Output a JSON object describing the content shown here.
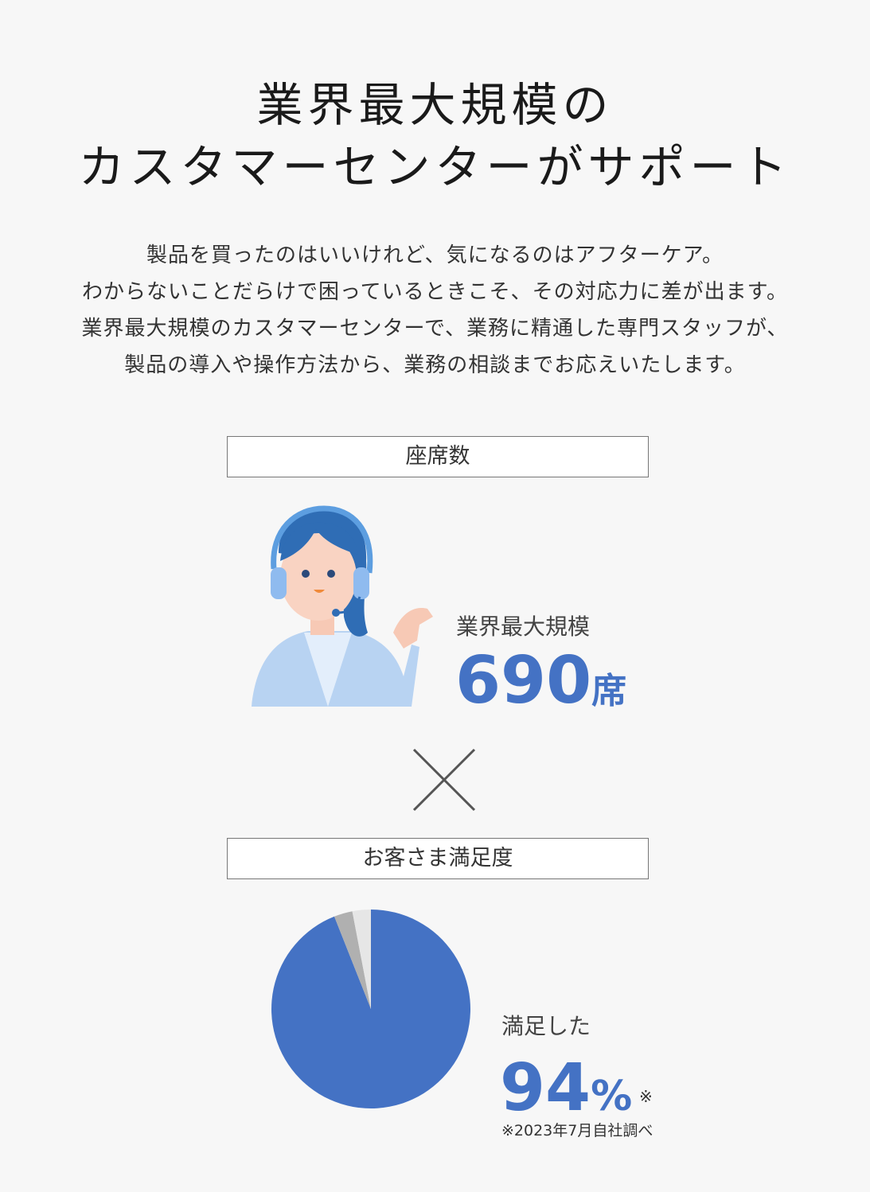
{
  "heading": {
    "line1": "業界最大規模の",
    "line2": "カスタマーセンターがサポート"
  },
  "lead": [
    "製品を買ったのはいいけれど、気になるのはアフターケア。",
    "わからないことだらけで困っているときこそ、その対応力に差が出ます。",
    "業界最大規模のカスタマーセンターで、業務に精通した専門スタッフが、",
    "製品の導入や操作方法から、業務の相談までお応えいたします。"
  ],
  "seats": {
    "label": "座席数",
    "sub": "業界最大規模",
    "value": "690",
    "unit": "席",
    "icon": "operator-headset-illustration"
  },
  "times_icon": "multiply-icon",
  "satisfaction": {
    "label": "お客さま満足度",
    "sub": "満足した",
    "value": "94",
    "unit": "%",
    "mark": "※",
    "note": "※2023年7月自社調べ"
  },
  "chart_data": {
    "type": "pie",
    "values": [
      94,
      3,
      3
    ],
    "colors": [
      "#4472c4",
      "#b0b0b0",
      "#e6e6e6"
    ]
  },
  "colors": {
    "accent": "#4472c4",
    "background": "#f7f7f7"
  }
}
